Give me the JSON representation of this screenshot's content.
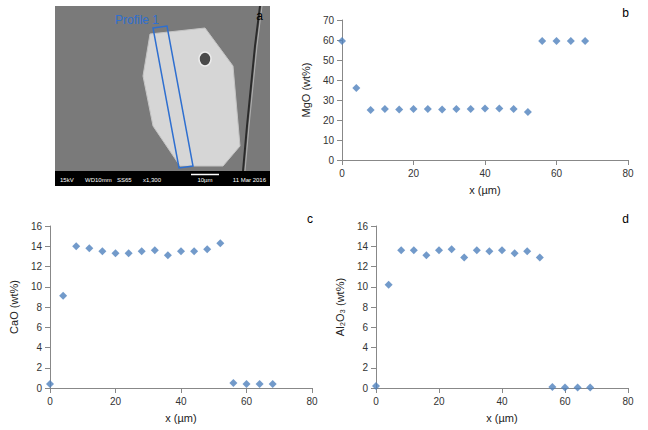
{
  "image": {
    "panel": "a",
    "profile_label": "Profile 1",
    "info_bar": [
      "15kV",
      "WD10mm",
      "SS65",
      "x1,300",
      "10µm",
      "11 Mar 2016"
    ]
  },
  "chart_data": [
    {
      "type": "scatter",
      "panel": "b",
      "x_label": "x (µm)",
      "y_label": "MgO (wt%)",
      "x": [
        0,
        4,
        8,
        12,
        16,
        20,
        24,
        28,
        32,
        36,
        40,
        44,
        48,
        52,
        56,
        60,
        64,
        68
      ],
      "values": [
        59.5,
        36,
        25,
        25.5,
        25.3,
        25.5,
        25.5,
        25.3,
        25.5,
        25.5,
        25.8,
        25.8,
        25.5,
        24,
        59.5,
        59.5,
        59.5,
        59.5
      ],
      "color": "#4f81bd",
      "marker": "diamond",
      "xlim": [
        0,
        80
      ],
      "xticks": [
        0,
        20,
        40,
        60,
        80
      ],
      "ylim": [
        0,
        70
      ],
      "yticks": [
        0,
        10,
        20,
        30,
        40,
        50,
        60,
        70
      ],
      "grid": false
    },
    {
      "type": "scatter",
      "panel": "c",
      "x_label": "x (µm)",
      "y_label": "CaO (wt%)",
      "x": [
        0,
        4,
        8,
        12,
        16,
        20,
        24,
        28,
        32,
        36,
        40,
        44,
        48,
        52,
        56,
        60,
        64,
        68
      ],
      "values": [
        0.4,
        9.1,
        14.0,
        13.8,
        13.5,
        13.3,
        13.3,
        13.5,
        13.6,
        13.1,
        13.5,
        13.5,
        13.7,
        14.3,
        0.5,
        0.4,
        0.4,
        0.4
      ],
      "color": "#4f81bd",
      "marker": "diamond",
      "xlim": [
        0,
        80
      ],
      "xticks": [
        0,
        20,
        40,
        60,
        80
      ],
      "ylim": [
        0,
        16
      ],
      "yticks": [
        0,
        2,
        4,
        6,
        8,
        10,
        12,
        14,
        16
      ],
      "grid": false
    },
    {
      "type": "scatter",
      "panel": "d",
      "x_label": "x (µm)",
      "y_label": "Al₂O₃ (wt%)",
      "x": [
        0,
        4,
        8,
        12,
        16,
        20,
        24,
        28,
        32,
        36,
        40,
        44,
        48,
        52,
        56,
        60,
        64,
        68
      ],
      "values": [
        0.2,
        10.2,
        13.6,
        13.6,
        13.1,
        13.6,
        13.7,
        12.9,
        13.6,
        13.5,
        13.6,
        13.3,
        13.5,
        12.9,
        0.1,
        0.05,
        0.05,
        0.05
      ],
      "color": "#4f81bd",
      "marker": "diamond",
      "xlim": [
        0,
        80
      ],
      "xticks": [
        0,
        20,
        40,
        60,
        80
      ],
      "ylim": [
        0,
        16
      ],
      "yticks": [
        0,
        2,
        4,
        6,
        8,
        10,
        12,
        14,
        16
      ],
      "grid": false
    }
  ]
}
